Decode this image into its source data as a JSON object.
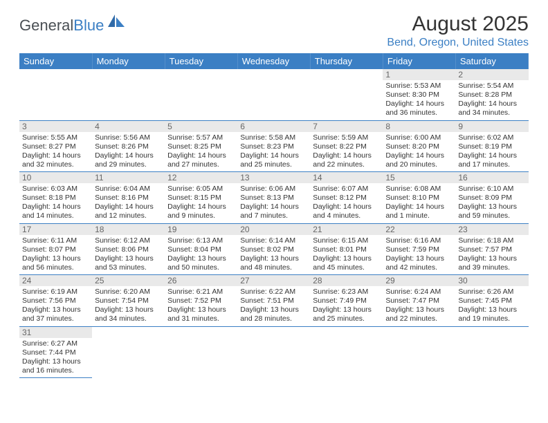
{
  "logo": {
    "general": "General",
    "blue": "Blue"
  },
  "title": "August 2025",
  "subtitle": "Bend, Oregon, United States",
  "colors": {
    "header_bg": "#3b7fc4",
    "header_text": "#ffffff",
    "daynum_bg": "#e9e9e9",
    "rule": "#3b7fc4",
    "text": "#333333",
    "subtitle": "#3b7fc4"
  },
  "weekdays": [
    "Sunday",
    "Monday",
    "Tuesday",
    "Wednesday",
    "Thursday",
    "Friday",
    "Saturday"
  ],
  "weeks": [
    [
      null,
      null,
      null,
      null,
      null,
      {
        "n": "1",
        "sunrise": "5:53 AM",
        "sunset": "8:30 PM",
        "daylight": "14 hours and 36 minutes."
      },
      {
        "n": "2",
        "sunrise": "5:54 AM",
        "sunset": "8:28 PM",
        "daylight": "14 hours and 34 minutes."
      }
    ],
    [
      {
        "n": "3",
        "sunrise": "5:55 AM",
        "sunset": "8:27 PM",
        "daylight": "14 hours and 32 minutes."
      },
      {
        "n": "4",
        "sunrise": "5:56 AM",
        "sunset": "8:26 PM",
        "daylight": "14 hours and 29 minutes."
      },
      {
        "n": "5",
        "sunrise": "5:57 AM",
        "sunset": "8:25 PM",
        "daylight": "14 hours and 27 minutes."
      },
      {
        "n": "6",
        "sunrise": "5:58 AM",
        "sunset": "8:23 PM",
        "daylight": "14 hours and 25 minutes."
      },
      {
        "n": "7",
        "sunrise": "5:59 AM",
        "sunset": "8:22 PM",
        "daylight": "14 hours and 22 minutes."
      },
      {
        "n": "8",
        "sunrise": "6:00 AM",
        "sunset": "8:20 PM",
        "daylight": "14 hours and 20 minutes."
      },
      {
        "n": "9",
        "sunrise": "6:02 AM",
        "sunset": "8:19 PM",
        "daylight": "14 hours and 17 minutes."
      }
    ],
    [
      {
        "n": "10",
        "sunrise": "6:03 AM",
        "sunset": "8:18 PM",
        "daylight": "14 hours and 14 minutes."
      },
      {
        "n": "11",
        "sunrise": "6:04 AM",
        "sunset": "8:16 PM",
        "daylight": "14 hours and 12 minutes."
      },
      {
        "n": "12",
        "sunrise": "6:05 AM",
        "sunset": "8:15 PM",
        "daylight": "14 hours and 9 minutes."
      },
      {
        "n": "13",
        "sunrise": "6:06 AM",
        "sunset": "8:13 PM",
        "daylight": "14 hours and 7 minutes."
      },
      {
        "n": "14",
        "sunrise": "6:07 AM",
        "sunset": "8:12 PM",
        "daylight": "14 hours and 4 minutes."
      },
      {
        "n": "15",
        "sunrise": "6:08 AM",
        "sunset": "8:10 PM",
        "daylight": "14 hours and 1 minute."
      },
      {
        "n": "16",
        "sunrise": "6:10 AM",
        "sunset": "8:09 PM",
        "daylight": "13 hours and 59 minutes."
      }
    ],
    [
      {
        "n": "17",
        "sunrise": "6:11 AM",
        "sunset": "8:07 PM",
        "daylight": "13 hours and 56 minutes."
      },
      {
        "n": "18",
        "sunrise": "6:12 AM",
        "sunset": "8:06 PM",
        "daylight": "13 hours and 53 minutes."
      },
      {
        "n": "19",
        "sunrise": "6:13 AM",
        "sunset": "8:04 PM",
        "daylight": "13 hours and 50 minutes."
      },
      {
        "n": "20",
        "sunrise": "6:14 AM",
        "sunset": "8:02 PM",
        "daylight": "13 hours and 48 minutes."
      },
      {
        "n": "21",
        "sunrise": "6:15 AM",
        "sunset": "8:01 PM",
        "daylight": "13 hours and 45 minutes."
      },
      {
        "n": "22",
        "sunrise": "6:16 AM",
        "sunset": "7:59 PM",
        "daylight": "13 hours and 42 minutes."
      },
      {
        "n": "23",
        "sunrise": "6:18 AM",
        "sunset": "7:57 PM",
        "daylight": "13 hours and 39 minutes."
      }
    ],
    [
      {
        "n": "24",
        "sunrise": "6:19 AM",
        "sunset": "7:56 PM",
        "daylight": "13 hours and 37 minutes."
      },
      {
        "n": "25",
        "sunrise": "6:20 AM",
        "sunset": "7:54 PM",
        "daylight": "13 hours and 34 minutes."
      },
      {
        "n": "26",
        "sunrise": "6:21 AM",
        "sunset": "7:52 PM",
        "daylight": "13 hours and 31 minutes."
      },
      {
        "n": "27",
        "sunrise": "6:22 AM",
        "sunset": "7:51 PM",
        "daylight": "13 hours and 28 minutes."
      },
      {
        "n": "28",
        "sunrise": "6:23 AM",
        "sunset": "7:49 PM",
        "daylight": "13 hours and 25 minutes."
      },
      {
        "n": "29",
        "sunrise": "6:24 AM",
        "sunset": "7:47 PM",
        "daylight": "13 hours and 22 minutes."
      },
      {
        "n": "30",
        "sunrise": "6:26 AM",
        "sunset": "7:45 PM",
        "daylight": "13 hours and 19 minutes."
      }
    ],
    [
      {
        "n": "31",
        "sunrise": "6:27 AM",
        "sunset": "7:44 PM",
        "daylight": "13 hours and 16 minutes."
      },
      null,
      null,
      null,
      null,
      null,
      null
    ]
  ],
  "labels": {
    "sunrise": "Sunrise: ",
    "sunset": "Sunset: ",
    "daylight": "Daylight: "
  }
}
